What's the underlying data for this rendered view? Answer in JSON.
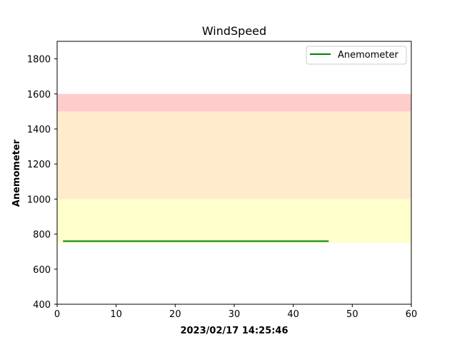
{
  "chart_data": {
    "type": "line",
    "title": "WindSpeed",
    "xlabel": "2023/02/17 14:25:46",
    "ylabel": "Anemometer",
    "xlim": [
      0,
      60
    ],
    "ylim": [
      400,
      1900
    ],
    "x_ticks": [
      0,
      10,
      20,
      30,
      40,
      50,
      60
    ],
    "y_ticks": [
      400,
      600,
      800,
      1000,
      1200,
      1400,
      1600,
      1800
    ],
    "grid": false,
    "legend_position": "top-right",
    "bands": [
      {
        "y0": 750,
        "y1": 1000,
        "color": "#ffffcc"
      },
      {
        "y0": 1000,
        "y1": 1500,
        "color": "#ffeccc"
      },
      {
        "y0": 1500,
        "y1": 1600,
        "color": "#ffcccc"
      }
    ],
    "series": [
      {
        "name": "Anemometer",
        "color": "#008000",
        "x": [
          1,
          46
        ],
        "y": [
          760,
          760
        ]
      }
    ]
  }
}
